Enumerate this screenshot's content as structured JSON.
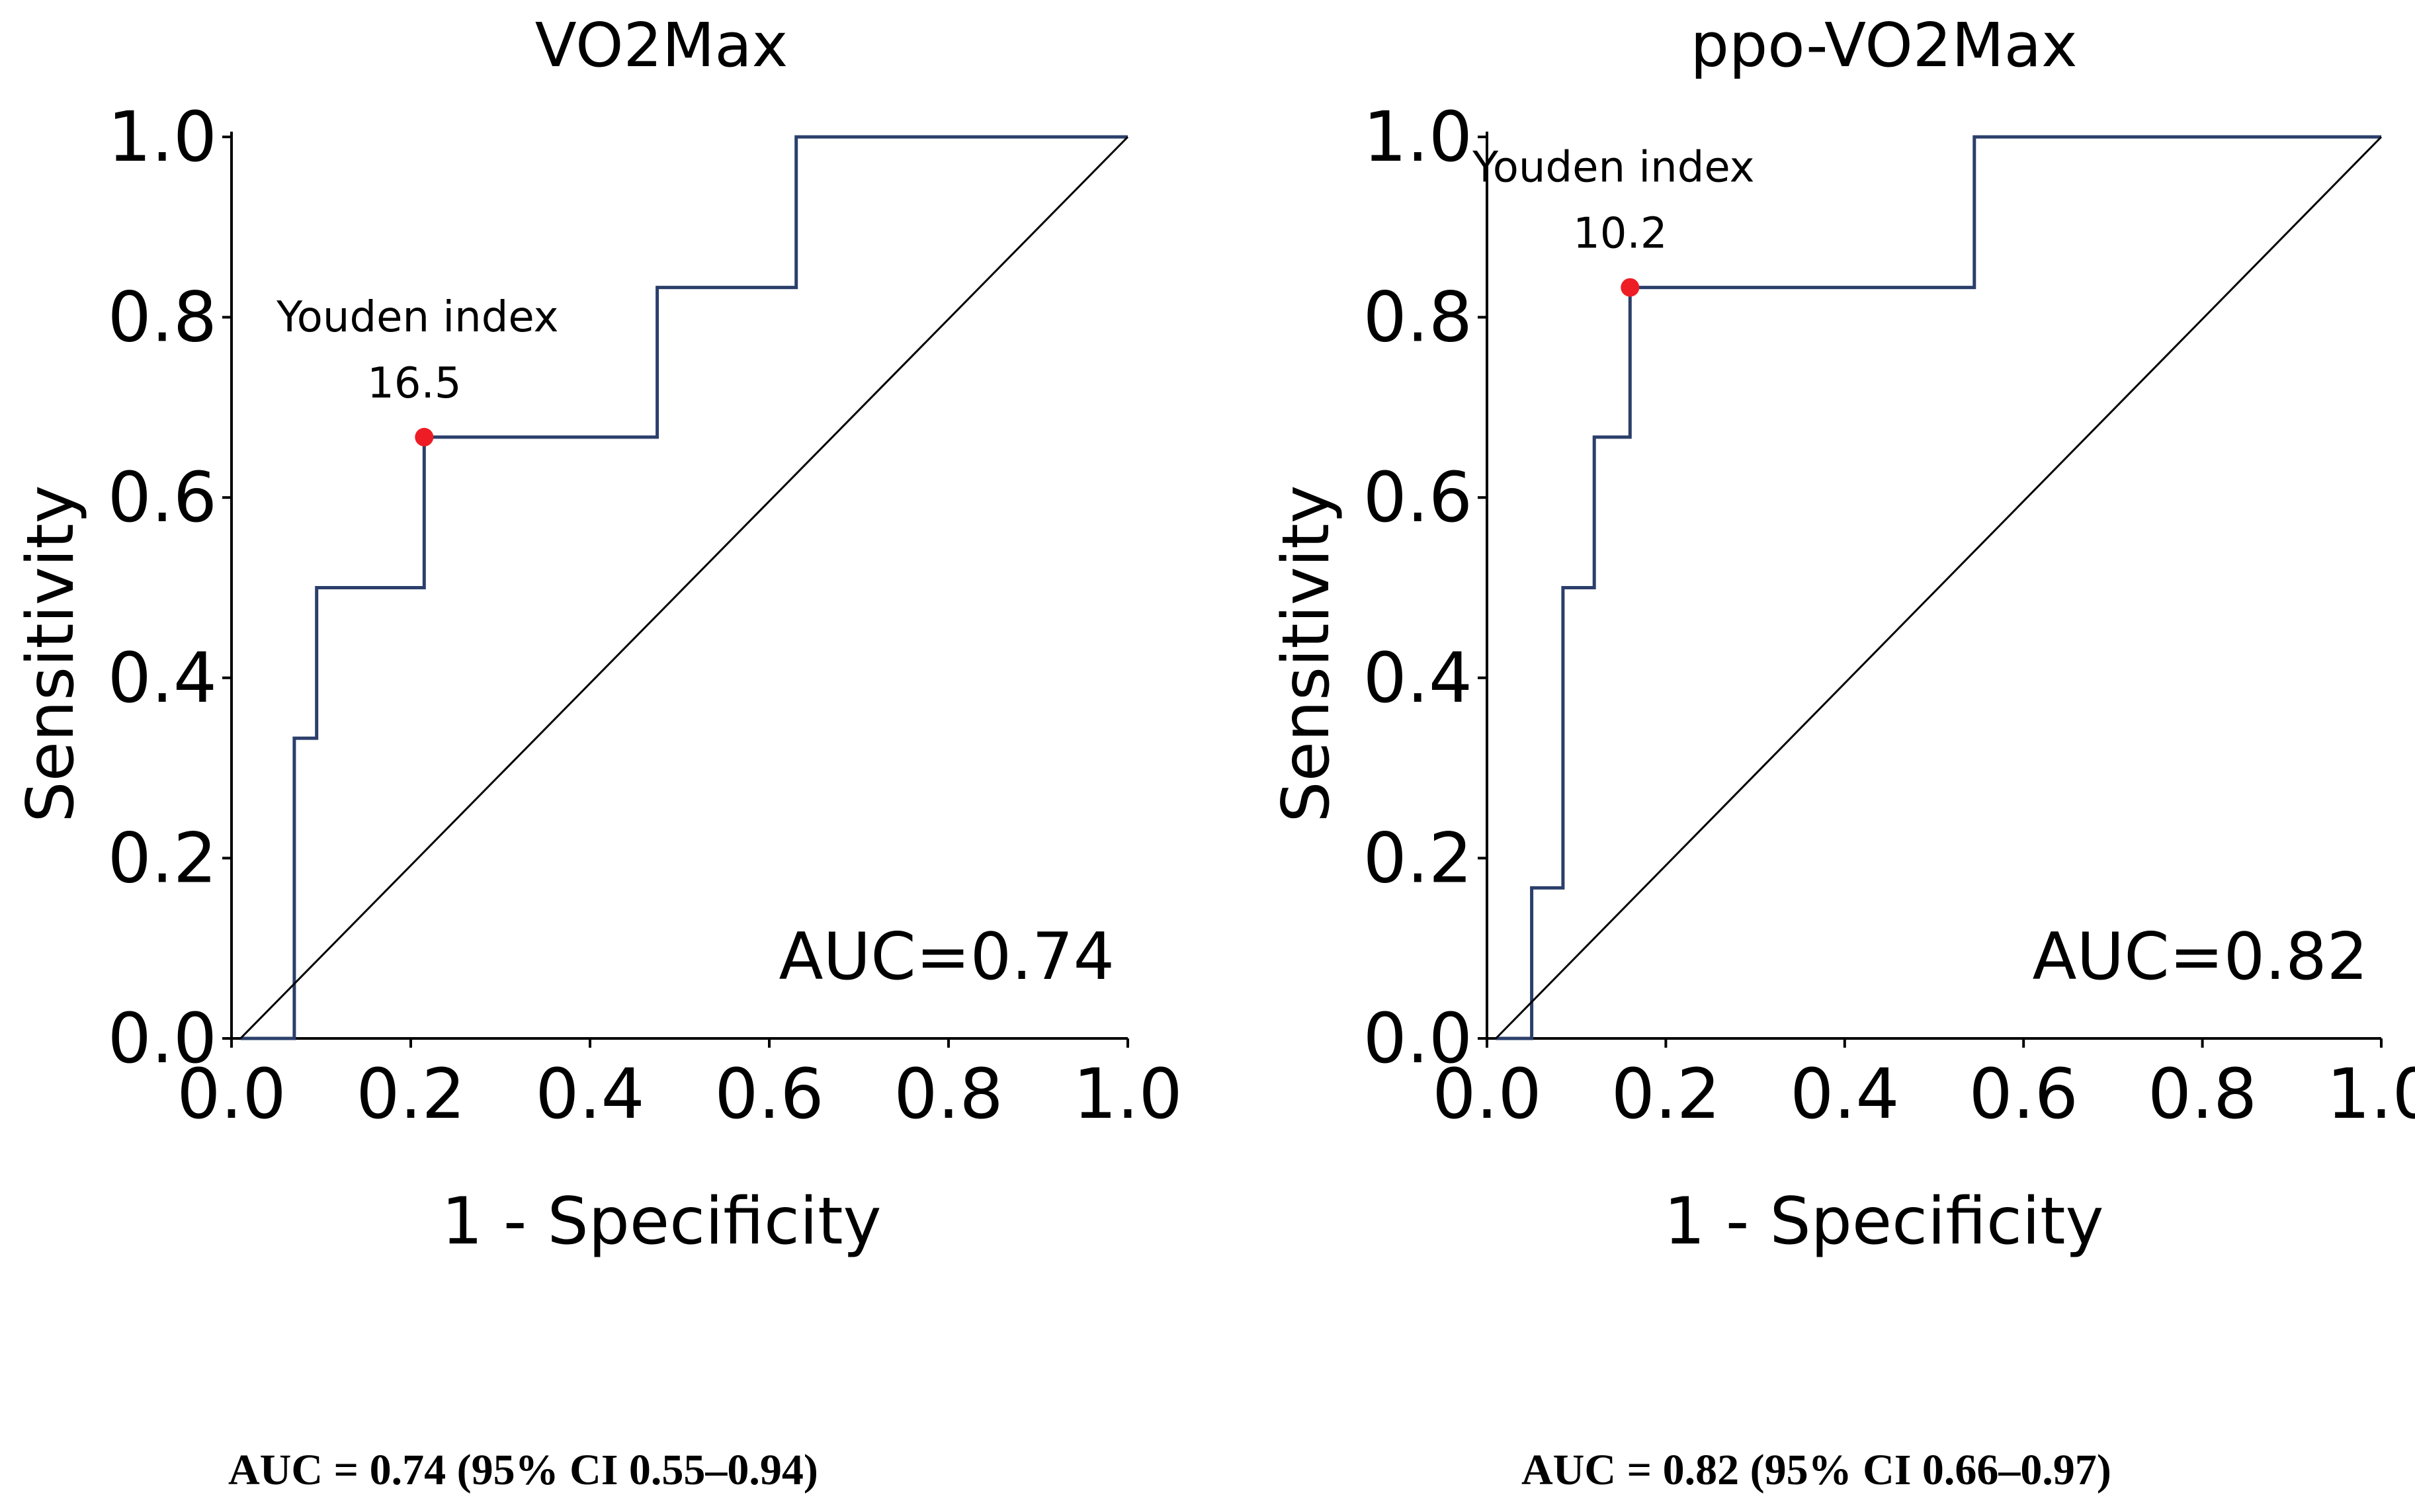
{
  "chart_data": [
    {
      "type": "line",
      "title": "VO2Max",
      "xlabel": "1 - Specificity",
      "ylabel": "Sensitivity",
      "xlim": [
        0.0,
        1.0
      ],
      "ylim": [
        0.0,
        1.0
      ],
      "xticks": [
        "0.0",
        "0.2",
        "0.4",
        "0.6",
        "0.8",
        "1.0"
      ],
      "yticks": [
        "0.0",
        "0.2",
        "0.4",
        "0.6",
        "0.8",
        "1.0"
      ],
      "series": [
        {
          "name": "ROC",
          "color": "#2b3f6b",
          "x": [
            0.01,
            0.07,
            0.07,
            0.095,
            0.095,
            0.215,
            0.215,
            0.475,
            0.475,
            0.63,
            0.63,
            1.0
          ],
          "y": [
            0.0,
            0.0,
            0.333,
            0.333,
            0.5,
            0.5,
            0.667,
            0.667,
            0.833,
            0.833,
            1.0,
            1.0
          ]
        },
        {
          "name": "Reference",
          "color": "#000000",
          "x": [
            0.01,
            1.0
          ],
          "y": [
            0.0,
            1.0
          ]
        }
      ],
      "youden": {
        "label": "Youden index",
        "value": "16.5",
        "x": 0.215,
        "y": 0.667,
        "color": "#ee1c25"
      },
      "auc_label": "AUC=0.74"
    },
    {
      "type": "line",
      "title": "ppo-VO2Max",
      "xlabel": "1 - Specificity",
      "ylabel": "Sensitivity",
      "xlim": [
        0.0,
        1.0
      ],
      "ylim": [
        0.0,
        1.0
      ],
      "xticks": [
        "0.0",
        "0.2",
        "0.4",
        "0.6",
        "0.8",
        "1.0"
      ],
      "yticks": [
        "0.0",
        "0.2",
        "0.4",
        "0.6",
        "0.8",
        "1.0"
      ],
      "series": [
        {
          "name": "ROC",
          "color": "#2b3f6b",
          "x": [
            0.01,
            0.05,
            0.05,
            0.085,
            0.085,
            0.12,
            0.12,
            0.16,
            0.16,
            0.545,
            0.545,
            1.0
          ],
          "y": [
            0.0,
            0.0,
            0.167,
            0.167,
            0.5,
            0.5,
            0.667,
            0.667,
            0.833,
            0.833,
            1.0,
            1.0
          ]
        },
        {
          "name": "Reference",
          "color": "#000000",
          "x": [
            0.01,
            1.0
          ],
          "y": [
            0.0,
            1.0
          ]
        }
      ],
      "youden": {
        "label": "Youden index",
        "value": "10.2",
        "x": 0.16,
        "y": 0.833,
        "color": "#ee1c25"
      },
      "auc_label": "AUC=0.82"
    }
  ],
  "captions": [
    "AUC = 0.74 (95% CI 0.55–0.94)",
    "AUC = 0.82 (95% CI 0.66–0.97)"
  ]
}
